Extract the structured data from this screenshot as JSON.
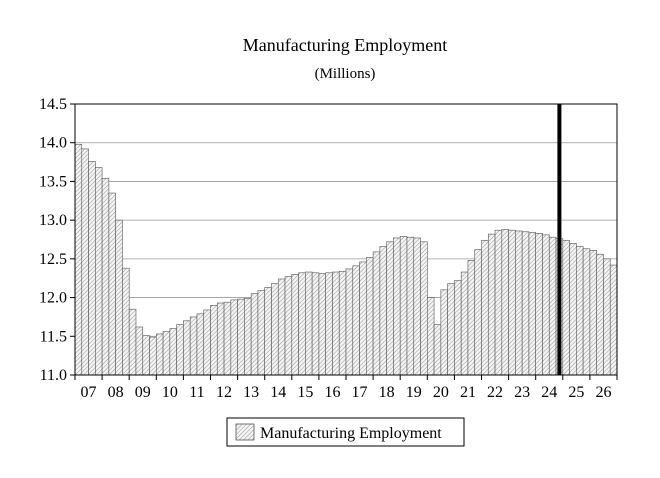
{
  "chart_data": {
    "type": "bar",
    "title": "Manufacturing Employment",
    "subtitle": "(Millions)",
    "xlabel": "",
    "ylabel": "",
    "ylim": [
      11.0,
      14.5
    ],
    "y_ticks": [
      "11.0",
      "11.5",
      "12.0",
      "12.5",
      "13.0",
      "13.5",
      "14.0",
      "14.5"
    ],
    "x_ticks": [
      "07",
      "08",
      "09",
      "10",
      "11",
      "12",
      "13",
      "14",
      "15",
      "16",
      "17",
      "18",
      "19",
      "20",
      "21",
      "22",
      "23",
      "24",
      "25",
      "26"
    ],
    "frequency": "quarterly",
    "start": "2007 Q1",
    "grid": "horizontal",
    "legend_position": "bottom-center",
    "forecast_marker": "2024 Q4",
    "series": [
      {
        "name": "Manufacturing Employment",
        "values": [
          13.98,
          13.92,
          13.76,
          13.68,
          13.54,
          13.35,
          13.0,
          12.38,
          11.85,
          11.62,
          11.51,
          11.49,
          11.53,
          11.56,
          11.6,
          11.65,
          11.7,
          11.75,
          11.79,
          11.84,
          11.9,
          11.93,
          11.94,
          11.97,
          11.98,
          11.99,
          12.05,
          12.09,
          12.13,
          12.18,
          12.24,
          12.27,
          12.3,
          12.32,
          12.33,
          12.32,
          12.31,
          12.32,
          12.33,
          12.34,
          12.37,
          12.41,
          12.46,
          12.52,
          12.59,
          12.66,
          12.72,
          12.77,
          12.79,
          12.78,
          12.77,
          12.72,
          12.0,
          11.65,
          12.1,
          12.18,
          12.22,
          12.33,
          12.48,
          12.62,
          12.74,
          12.82,
          12.87,
          12.88,
          12.87,
          12.86,
          12.85,
          12.84,
          12.83,
          12.81,
          12.78,
          12.76,
          12.74,
          12.7,
          12.66,
          12.63,
          12.61,
          12.56,
          12.5,
          12.42
        ]
      }
    ]
  }
}
